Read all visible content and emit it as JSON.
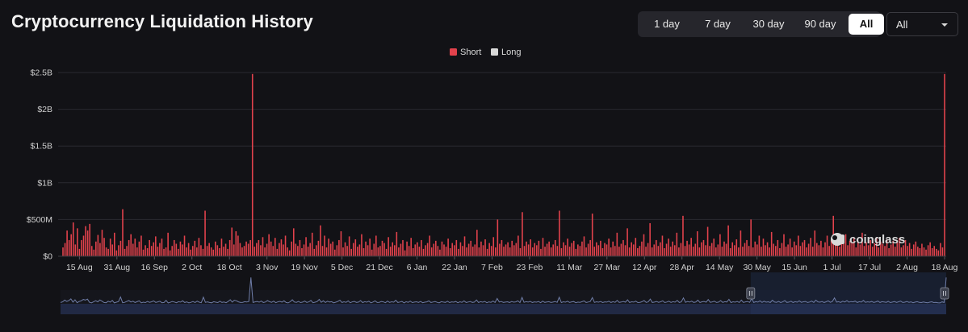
{
  "header": {
    "title": "Cryptocurrency Liquidation History",
    "ranges": [
      "1 day",
      "7 day",
      "30 day",
      "90 day",
      "All"
    ],
    "active_range": "All",
    "select_value": "All"
  },
  "watermark": {
    "text": "coinglass"
  },
  "colors": {
    "short": "#e2424c",
    "long": "#d9d9d9",
    "grid": "#2a2a30",
    "navigator": "#6f7da8"
  },
  "chart_data": {
    "type": "bar",
    "legend": [
      {
        "name": "Short",
        "color": "#e2424c"
      },
      {
        "name": "Long",
        "color": "#d9d9d9"
      }
    ],
    "legend_position": "top-center",
    "x_start": "2023-08-08",
    "x_end": "2024-08-18",
    "x_ticks": [
      "15 Aug",
      "31 Aug",
      "16 Sep",
      "2 Oct",
      "18 Oct",
      "3 Nov",
      "19 Nov",
      "5 Dec",
      "21 Dec",
      "6 Jan",
      "22 Jan",
      "7 Feb",
      "23 Feb",
      "11 Mar",
      "27 Mar",
      "12 Apr",
      "28 Apr",
      "14 May",
      "30 May",
      "15 Jun",
      "1 Jul",
      "17 Jul",
      "2 Aug",
      "18 Aug"
    ],
    "y_ticks": [
      "$0",
      "$500M",
      "$1B",
      "$1.5B",
      "$2B",
      "$2.5B"
    ],
    "ylim": [
      0,
      2500000000
    ],
    "grid": true,
    "series": [
      {
        "name": "Short",
        "unit": "USD",
        "values": [
          120000000.0,
          180000000.0,
          350000000.0,
          220000000.0,
          300000000.0,
          460000000.0,
          160000000.0,
          380000000.0,
          100000000.0,
          220000000.0,
          280000000.0,
          410000000.0,
          350000000.0,
          440000000.0,
          140000000.0,
          90000000.0,
          200000000.0,
          290000000.0,
          180000000.0,
          360000000.0,
          250000000.0,
          120000000.0,
          100000000.0,
          240000000.0,
          160000000.0,
          320000000.0,
          80000000.0,
          150000000.0,
          210000000.0,
          640000000.0,
          100000000.0,
          140000000.0,
          220000000.0,
          300000000.0,
          170000000.0,
          240000000.0,
          120000000.0,
          200000000.0,
          280000000.0,
          90000000.0,
          150000000.0,
          110000000.0,
          220000000.0,
          140000000.0,
          190000000.0,
          270000000.0,
          130000000.0,
          180000000.0,
          240000000.0,
          100000000.0,
          120000000.0,
          320000000.0,
          80000000.0,
          140000000.0,
          220000000.0,
          170000000.0,
          100000000.0,
          200000000.0,
          160000000.0,
          280000000.0,
          120000000.0,
          180000000.0,
          90000000.0,
          140000000.0,
          210000000.0,
          120000000.0,
          250000000.0,
          150000000.0,
          100000000.0,
          620000000.0,
          140000000.0,
          180000000.0,
          120000000.0,
          90000000.0,
          200000000.0,
          150000000.0,
          110000000.0,
          240000000.0,
          130000000.0,
          170000000.0,
          100000000.0,
          220000000.0,
          390000000.0,
          160000000.0,
          340000000.0,
          280000000.0,
          180000000.0,
          120000000.0,
          140000000.0,
          200000000.0,
          170000000.0,
          220000000.0,
          2480000000.0,
          130000000.0,
          180000000.0,
          220000000.0,
          150000000.0,
          260000000.0,
          120000000.0,
          170000000.0,
          300000000.0,
          200000000.0,
          140000000.0,
          250000000.0,
          100000000.0,
          180000000.0,
          230000000.0,
          160000000.0,
          280000000.0,
          120000000.0,
          80000000.0,
          200000000.0,
          380000000.0,
          170000000.0,
          140000000.0,
          220000000.0,
          110000000.0,
          160000000.0,
          260000000.0,
          130000000.0,
          180000000.0,
          320000000.0,
          100000000.0,
          150000000.0,
          210000000.0,
          420000000.0,
          140000000.0,
          280000000.0,
          120000000.0,
          240000000.0,
          170000000.0,
          200000000.0,
          90000000.0,
          150000000.0,
          220000000.0,
          340000000.0,
          120000000.0,
          190000000.0,
          140000000.0,
          270000000.0,
          100000000.0,
          180000000.0,
          230000000.0,
          130000000.0,
          160000000.0,
          300000000.0,
          110000000.0,
          200000000.0,
          150000000.0,
          240000000.0,
          90000000.0,
          170000000.0,
          280000000.0,
          120000000.0,
          140000000.0,
          210000000.0,
          180000000.0,
          100000000.0,
          260000000.0,
          130000000.0,
          190000000.0,
          150000000.0,
          330000000.0,
          120000000.0,
          170000000.0,
          220000000.0,
          80000000.0,
          200000000.0,
          140000000.0,
          250000000.0,
          110000000.0,
          160000000.0,
          190000000.0,
          130000000.0,
          220000000.0,
          100000000.0,
          150000000.0,
          180000000.0,
          280000000.0,
          120000000.0,
          170000000.0,
          210000000.0,
          140000000.0,
          90000000.0,
          200000000.0,
          160000000.0,
          130000000.0,
          240000000.0,
          110000000.0,
          180000000.0,
          150000000.0,
          220000000.0,
          100000000.0,
          190000000.0,
          140000000.0,
          270000000.0,
          120000000.0,
          170000000.0,
          210000000.0,
          130000000.0,
          160000000.0,
          360000000.0,
          120000000.0,
          200000000.0,
          150000000.0,
          230000000.0,
          100000000.0,
          180000000.0,
          140000000.0,
          260000000.0,
          120000000.0,
          500000000.0,
          170000000.0,
          220000000.0,
          130000000.0,
          160000000.0,
          190000000.0,
          120000000.0,
          210000000.0,
          150000000.0,
          180000000.0,
          280000000.0,
          110000000.0,
          600000000.0,
          140000000.0,
          200000000.0,
          160000000.0,
          230000000.0,
          120000000.0,
          180000000.0,
          150000000.0,
          210000000.0,
          100000000.0,
          250000000.0,
          130000000.0,
          170000000.0,
          200000000.0,
          120000000.0,
          160000000.0,
          220000000.0,
          140000000.0,
          620000000.0,
          110000000.0,
          190000000.0,
          150000000.0,
          240000000.0,
          130000000.0,
          180000000.0,
          210000000.0,
          100000000.0,
          160000000.0,
          140000000.0,
          200000000.0,
          270000000.0,
          120000000.0,
          170000000.0,
          220000000.0,
          580000000.0,
          130000000.0,
          190000000.0,
          150000000.0,
          210000000.0,
          110000000.0,
          180000000.0,
          160000000.0,
          240000000.0,
          120000000.0,
          200000000.0,
          140000000.0,
          320000000.0,
          130000000.0,
          170000000.0,
          220000000.0,
          150000000.0,
          380000000.0,
          120000000.0,
          190000000.0,
          160000000.0,
          250000000.0,
          110000000.0,
          140000000.0,
          200000000.0,
          300000000.0,
          130000000.0,
          180000000.0,
          450000000.0,
          120000000.0,
          160000000.0,
          220000000.0,
          140000000.0,
          190000000.0,
          280000000.0,
          110000000.0,
          170000000.0,
          240000000.0,
          130000000.0,
          200000000.0,
          150000000.0,
          320000000.0,
          120000000.0,
          180000000.0,
          550000000.0,
          140000000.0,
          210000000.0,
          160000000.0,
          250000000.0,
          130000000.0,
          170000000.0,
          340000000.0,
          120000000.0,
          190000000.0,
          220000000.0,
          150000000.0,
          400000000.0,
          140000000.0,
          180000000.0,
          240000000.0,
          120000000.0,
          160000000.0,
          300000000.0,
          130000000.0,
          200000000.0,
          170000000.0,
          420000000.0,
          110000000.0,
          190000000.0,
          150000000.0,
          230000000.0,
          120000000.0,
          350000000.0,
          130000000.0,
          180000000.0,
          220000000.0,
          140000000.0,
          500000000.0,
          120000000.0,
          200000000.0,
          160000000.0,
          280000000.0,
          130000000.0,
          240000000.0,
          150000000.0,
          190000000.0,
          120000000.0,
          330000000.0,
          170000000.0,
          140000000.0,
          220000000.0,
          110000000.0,
          180000000.0,
          300000000.0,
          130000000.0,
          160000000.0,
          240000000.0,
          120000000.0,
          200000000.0,
          150000000.0,
          280000000.0,
          140000000.0,
          190000000.0,
          220000000.0,
          120000000.0,
          170000000.0,
          250000000.0,
          130000000.0,
          350000000.0,
          180000000.0,
          150000000.0,
          210000000.0,
          120000000.0,
          190000000.0,
          280000000.0,
          140000000.0,
          220000000.0,
          550000000.0,
          160000000.0,
          200000000.0,
          130000000.0,
          240000000.0,
          170000000.0,
          300000000.0,
          150000000.0,
          210000000.0,
          180000000.0,
          260000000.0,
          120000000.0,
          200000000.0,
          160000000.0,
          320000000.0,
          140000000.0,
          190000000.0,
          150000000.0,
          220000000.0,
          130000000.0,
          180000000.0,
          260000000.0,
          120000000.0,
          200000000.0,
          170000000.0,
          140000000.0,
          230000000.0,
          110000000.0,
          160000000.0,
          210000000.0,
          130000000.0,
          190000000.0,
          250000000.0,
          120000000.0,
          150000000.0,
          220000000.0,
          140000000.0,
          180000000.0,
          100000000.0,
          160000000.0,
          200000000.0,
          130000000.0,
          110000000.0,
          170000000.0,
          120000000.0,
          90000000.0,
          150000000.0,
          190000000.0,
          110000000.0,
          140000000.0,
          100000000.0,
          80000000.0,
          180000000.0,
          120000000.0,
          2480000000.0
        ]
      }
    ],
    "navigator": {
      "range_start": "2024-05-27",
      "range_end": "2024-08-18"
    }
  }
}
